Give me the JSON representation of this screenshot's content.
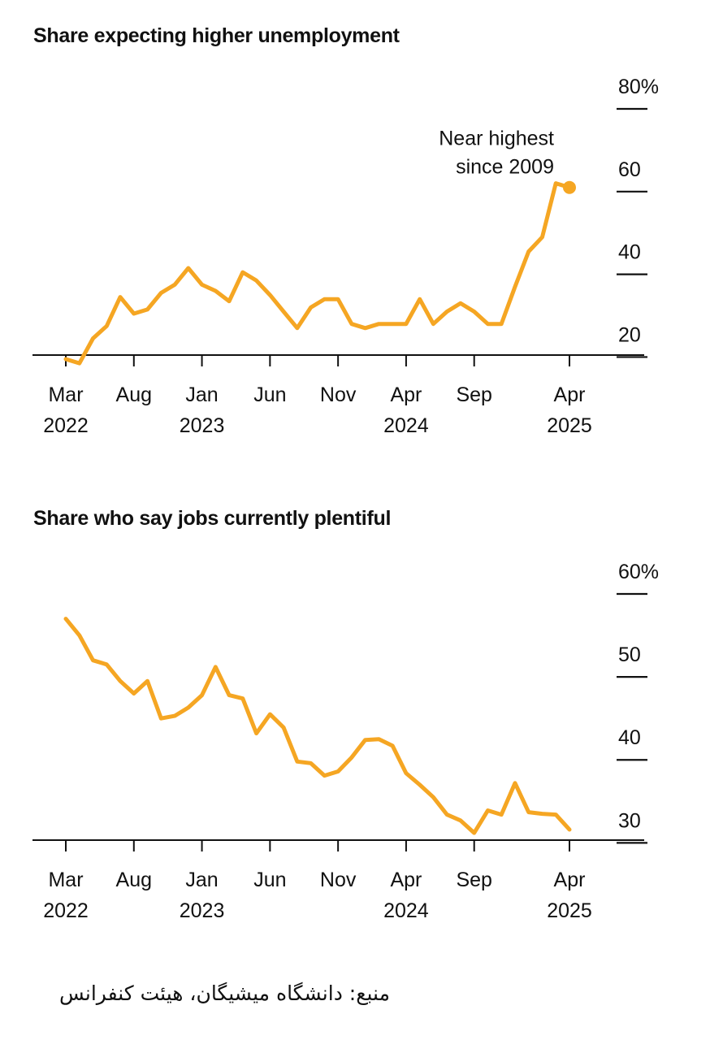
{
  "charts": [
    {
      "title": "Share expecting higher unemployment",
      "annotation": [
        "Near highest",
        "since 2009"
      ]
    },
    {
      "title": "Share who say jobs currently plentiful"
    }
  ],
  "source": "منبع: دانشگاه میشیگان، هیئت کنفرانس",
  "colors": {
    "line": "#f5a623",
    "axis": "#111111",
    "text": "#111111",
    "background": "#ffffff"
  },
  "chart_data": [
    {
      "type": "line",
      "title": "Share expecting higher unemployment",
      "xlabel": "",
      "ylabel": "",
      "unit": "%",
      "ylim": [
        14,
        80
      ],
      "yticks": [
        20,
        40,
        60,
        80
      ],
      "ytick_labels": [
        "20",
        "40",
        "60",
        "80%"
      ],
      "xticks": [
        {
          "index": 0,
          "month": "Mar",
          "year": "2022"
        },
        {
          "index": 5,
          "month": "Aug",
          "year": ""
        },
        {
          "index": 10,
          "month": "Jan",
          "year": "2023"
        },
        {
          "index": 15,
          "month": "Jun",
          "year": ""
        },
        {
          "index": 20,
          "month": "Nov",
          "year": ""
        },
        {
          "index": 25,
          "month": "Apr",
          "year": "2024"
        },
        {
          "index": 30,
          "month": "Sep",
          "year": ""
        },
        {
          "index": 37,
          "month": "Apr",
          "year": "2025"
        }
      ],
      "series": [
        {
          "name": "Share expecting higher unemployment",
          "x_start": "Mar 2022",
          "values": [
            19.5,
            18.5,
            24.5,
            27.5,
            34.5,
            30.5,
            31.5,
            35.5,
            37.5,
            41.5,
            37.5,
            36,
            33.5,
            40.5,
            38.5,
            35,
            31,
            27,
            32,
            34,
            34,
            28,
            27,
            28,
            28,
            28,
            34,
            28,
            31,
            33,
            31,
            28,
            28,
            37,
            45.5,
            49,
            62,
            61
          ]
        }
      ],
      "annotations": [
        {
          "text": [
            "Near highest",
            "since 2009"
          ],
          "index": 37,
          "value": 61
        }
      ]
    },
    {
      "type": "line",
      "title": "Share who say jobs currently plentiful",
      "xlabel": "",
      "ylabel": "",
      "unit": "%",
      "ylim": [
        27,
        60
      ],
      "yticks": [
        30,
        40,
        50,
        60
      ],
      "ytick_labels": [
        "30",
        "40",
        "50",
        "60%"
      ],
      "xticks": [
        {
          "index": 0,
          "month": "Mar",
          "year": "2022"
        },
        {
          "index": 5,
          "month": "Aug",
          "year": ""
        },
        {
          "index": 10,
          "month": "Jan",
          "year": "2023"
        },
        {
          "index": 15,
          "month": "Jun",
          "year": ""
        },
        {
          "index": 20,
          "month": "Nov",
          "year": ""
        },
        {
          "index": 25,
          "month": "Apr",
          "year": "2024"
        },
        {
          "index": 30,
          "month": "Sep",
          "year": ""
        },
        {
          "index": 37,
          "month": "Apr",
          "year": "2025"
        }
      ],
      "series": [
        {
          "name": "Share who say jobs currently plentiful",
          "x_start": "Mar 2022",
          "values": [
            57,
            55,
            52,
            51.5,
            49.5,
            48,
            49.5,
            45,
            45.3,
            46.3,
            47.8,
            51.2,
            47.8,
            47.4,
            43.2,
            45.5,
            43.9,
            39.8,
            39.6,
            38.1,
            38.6,
            40.3,
            42.4,
            42.5,
            41.7,
            38.4,
            37,
            35.5,
            33.4,
            32.7,
            31.2,
            33.9,
            33.4,
            37.2,
            33.7,
            33.5,
            33.4,
            31.6
          ]
        }
      ]
    }
  ]
}
